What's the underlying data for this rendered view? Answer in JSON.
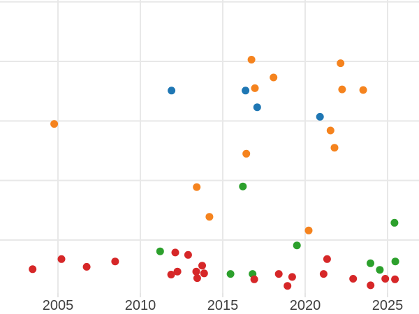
{
  "chart_data": {
    "type": "scatter",
    "title": "",
    "xlabel": "",
    "ylabel": "",
    "legend_position": "none",
    "grid": true,
    "x_ticks": [
      2005,
      2010,
      2015,
      2020,
      2025
    ],
    "x_tick_labels": [
      "2005",
      "2010",
      "2015",
      "2020",
      "2025"
    ],
    "xlim": [
      2001.5,
      2026.9
    ],
    "ylim": [
      0.05,
      5.03
    ],
    "y_gridlines": [
      0,
      1,
      2,
      3,
      4,
      5
    ],
    "y_tick_labels_visible": false,
    "y_units": "unlabeled gridline index (bottom gridline = 0, y-axis labels cropped out of view)",
    "marker_diameter_px": 11,
    "series": [
      {
        "name": "orange",
        "color": "#f5831e",
        "points": [
          [
            2004.77,
            2.95
          ],
          [
            2016.74,
            4.03
          ],
          [
            2016.95,
            3.55
          ],
          [
            2018.08,
            3.73
          ],
          [
            2022.15,
            3.97
          ],
          [
            2022.24,
            3.53
          ],
          [
            2023.52,
            3.52
          ],
          [
            2021.54,
            2.84
          ],
          [
            2021.78,
            2.55
          ],
          [
            2016.43,
            2.45
          ],
          [
            2013.42,
            1.89
          ],
          [
            2014.19,
            1.39
          ],
          [
            2020.21,
            1.16
          ]
        ]
      },
      {
        "name": "blue",
        "color": "#1f77b4",
        "points": [
          [
            2011.89,
            3.51
          ],
          [
            2016.38,
            3.51
          ],
          [
            2017.09,
            3.23
          ],
          [
            2020.9,
            3.07
          ]
        ]
      },
      {
        "name": "green",
        "color": "#2ca02c",
        "points": [
          [
            2016.22,
            1.9
          ],
          [
            2025.42,
            1.29
          ],
          [
            2019.5,
            0.91
          ],
          [
            2011.2,
            0.81
          ],
          [
            2015.47,
            0.43
          ],
          [
            2016.81,
            0.43
          ],
          [
            2023.96,
            0.61
          ],
          [
            2024.53,
            0.5
          ],
          [
            2025.47,
            0.64
          ]
        ]
      },
      {
        "name": "red",
        "color": "#d62728",
        "points": [
          [
            2003.46,
            0.51
          ],
          [
            2005.21,
            0.68
          ],
          [
            2006.74,
            0.55
          ],
          [
            2008.47,
            0.64
          ],
          [
            2012.12,
            0.79
          ],
          [
            2012.9,
            0.75
          ],
          [
            2011.87,
            0.42
          ],
          [
            2012.25,
            0.47
          ],
          [
            2013.75,
            0.57
          ],
          [
            2013.39,
            0.47
          ],
          [
            2013.87,
            0.44
          ],
          [
            2013.45,
            0.36
          ],
          [
            2016.91,
            0.34
          ],
          [
            2018.4,
            0.43
          ],
          [
            2019.21,
            0.38
          ],
          [
            2018.93,
            0.23
          ],
          [
            2021.33,
            0.68
          ],
          [
            2021.12,
            0.43
          ],
          [
            2022.91,
            0.35
          ],
          [
            2023.97,
            0.24
          ],
          [
            2024.86,
            0.35
          ],
          [
            2025.45,
            0.34
          ]
        ]
      }
    ]
  },
  "styles": {
    "background": "#ffffff",
    "grid_color": "#e8e8e8",
    "tick_label_color": "#3f3f3f"
  }
}
